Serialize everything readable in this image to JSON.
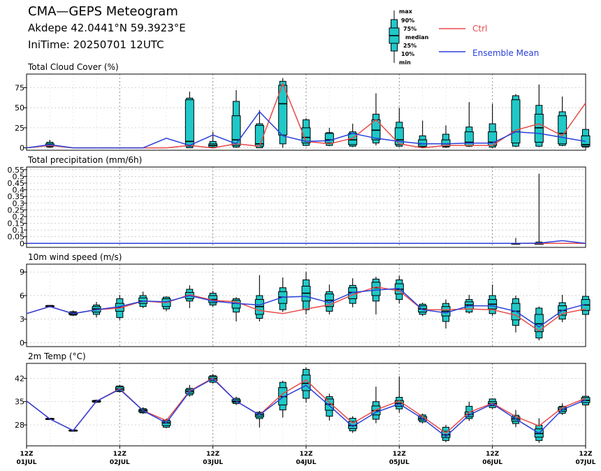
{
  "header": {
    "title": "CMA—GEPS Meteogram",
    "location": "Akdepe 42.0441°N 59.3923°E",
    "init_time": "IniTime: 20250701 12UTC"
  },
  "legend": {
    "box_labels": [
      "max",
      "90%",
      "75%",
      "median",
      "25%",
      "10%",
      "min"
    ],
    "ctrl_label": "Ctrl",
    "mean_label": "Ensemble Mean",
    "ctrl_color": "#e84a4a",
    "mean_color": "#2b3fd8",
    "box_fill": "#20c8c8"
  },
  "x_axis": {
    "ticks": [
      {
        "t": 0,
        "l1": "12Z",
        "l2": "01JUL"
      },
      {
        "t": 24,
        "l1": "12Z",
        "l2": "02JUL"
      },
      {
        "t": 48,
        "l1": "12Z",
        "l2": "03JUL"
      },
      {
        "t": 72,
        "l1": "12Z",
        "l2": "04JUL"
      },
      {
        "t": 96,
        "l1": "12Z",
        "l2": "05JUL"
      },
      {
        "t": 120,
        "l1": "12Z",
        "l2": "06JUL"
      },
      {
        "t": 144,
        "l1": "12Z",
        "l2": "07JUL"
      }
    ]
  },
  "chart_data": [
    {
      "type": "box",
      "title": "Total Cloud Cover (%)",
      "ylim": [
        -3,
        92
      ],
      "yticks": [
        0,
        25,
        50,
        75
      ],
      "x_hours": [
        0,
        6,
        12,
        18,
        24,
        30,
        36,
        42,
        48,
        54,
        60,
        66,
        72,
        78,
        84,
        90,
        96,
        102,
        108,
        114,
        120,
        126,
        132,
        138,
        144
      ],
      "ctrl": [
        0,
        3,
        0,
        0,
        0,
        0,
        0,
        3,
        0,
        5,
        2,
        80,
        8,
        5,
        12,
        35,
        5,
        0,
        3,
        3,
        3,
        22,
        30,
        15,
        56
      ],
      "mean": [
        0,
        4,
        0,
        0,
        0,
        0,
        12,
        3,
        16,
        5,
        45,
        15,
        8,
        9,
        18,
        12,
        8,
        5,
        5,
        6,
        6,
        20,
        18,
        13,
        8
      ],
      "boxes": [
        {
          "t": 6,
          "min": 0,
          "p10": 1,
          "p25": 2,
          "median": 3,
          "p75": 5,
          "p90": 7,
          "max": 10
        },
        {
          "t": 42,
          "min": 0,
          "p10": 0,
          "p25": 2,
          "median": 8,
          "p75": 60,
          "p90": 62,
          "max": 70
        },
        {
          "t": 48,
          "min": 0,
          "p10": 0,
          "p25": 1,
          "median": 3,
          "p75": 5,
          "p90": 8,
          "max": 20
        },
        {
          "t": 54,
          "min": 0,
          "p10": 1,
          "p25": 3,
          "median": 10,
          "p75": 40,
          "p90": 58,
          "max": 72
        },
        {
          "t": 60,
          "min": 0,
          "p10": 0,
          "p25": 2,
          "median": 5,
          "p75": 28,
          "p90": 30,
          "max": 47
        },
        {
          "t": 66,
          "min": 0,
          "p10": 5,
          "p25": 16,
          "median": 55,
          "p75": 78,
          "p90": 83,
          "max": 87
        },
        {
          "t": 72,
          "min": 2,
          "p10": 3,
          "p25": 6,
          "median": 13,
          "p75": 25,
          "p90": 35,
          "max": 37
        },
        {
          "t": 78,
          "min": 2,
          "p10": 3,
          "p25": 6,
          "median": 10,
          "p75": 18,
          "p90": 19,
          "max": 25
        },
        {
          "t": 84,
          "min": 1,
          "p10": 2,
          "p25": 4,
          "median": 10,
          "p75": 18,
          "p90": 20,
          "max": 30
        },
        {
          "t": 90,
          "min": 3,
          "p10": 6,
          "p25": 10,
          "median": 22,
          "p75": 35,
          "p90": 42,
          "max": 68
        },
        {
          "t": 96,
          "min": 1,
          "p10": 2,
          "p25": 4,
          "median": 10,
          "p75": 25,
          "p90": 32,
          "max": 50
        },
        {
          "t": 102,
          "min": 0,
          "p10": 1,
          "p25": 2,
          "median": 5,
          "p75": 10,
          "p90": 15,
          "max": 34
        },
        {
          "t": 108,
          "min": 0,
          "p10": 1,
          "p25": 2,
          "median": 5,
          "p75": 10,
          "p90": 17,
          "max": 28
        },
        {
          "t": 114,
          "min": 1,
          "p10": 2,
          "p25": 3,
          "median": 7,
          "p75": 20,
          "p90": 26,
          "max": 57
        },
        {
          "t": 120,
          "min": 0,
          "p10": 1,
          "p25": 3,
          "median": 7,
          "p75": 20,
          "p90": 30,
          "max": 55
        },
        {
          "t": 126,
          "min": 1,
          "p10": 2,
          "p25": 6,
          "median": 20,
          "p75": 60,
          "p90": 65,
          "max": 67
        },
        {
          "t": 132,
          "min": 1,
          "p10": 2,
          "p25": 7,
          "median": 25,
          "p75": 42,
          "p90": 53,
          "max": 79
        },
        {
          "t": 138,
          "min": 2,
          "p10": 3,
          "p25": 5,
          "median": 18,
          "p75": 40,
          "p90": 45,
          "max": 64
        },
        {
          "t": 144,
          "min": 0,
          "p10": 1,
          "p25": 2,
          "median": 4,
          "p75": 15,
          "p90": 23,
          "max": 24
        }
      ]
    },
    {
      "type": "box",
      "title": "Total precipitation (mm/6h)",
      "ylim": [
        -0.03,
        0.57
      ],
      "yticks": [
        0,
        0.05,
        0.1,
        0.15,
        0.2,
        0.25,
        0.3,
        0.35,
        0.4,
        0.45,
        0.5,
        0.55
      ],
      "x_hours": [
        0,
        6,
        12,
        18,
        24,
        30,
        36,
        42,
        48,
        54,
        60,
        66,
        72,
        78,
        84,
        90,
        96,
        102,
        108,
        114,
        120,
        126,
        132,
        138,
        144
      ],
      "ctrl": [
        0,
        0,
        0,
        0,
        0,
        0,
        0,
        0,
        0,
        0,
        0,
        0,
        0,
        0,
        0,
        0,
        0,
        0,
        0,
        0,
        0,
        0,
        0,
        0,
        0
      ],
      "mean": [
        0,
        0,
        0,
        0,
        0,
        0,
        0,
        0,
        0,
        0,
        0,
        0,
        0,
        0,
        0,
        0,
        0,
        0,
        0,
        0,
        0,
        0,
        0.002,
        0.02,
        0
      ],
      "boxes": [
        {
          "t": 126,
          "min": 0,
          "p10": 0,
          "p25": 0,
          "median": 0,
          "p75": 0,
          "p90": 0,
          "max": 0.04
        },
        {
          "t": 132,
          "min": 0,
          "p10": 0,
          "p25": 0,
          "median": 0,
          "p75": 0,
          "p90": 0.01,
          "max": 0.52
        }
      ]
    },
    {
      "type": "box",
      "title": "10m wind speed (m/s)",
      "ylim": [
        -0.5,
        10
      ],
      "yticks": [
        0,
        3,
        6,
        9
      ],
      "x_hours": [
        0,
        6,
        12,
        18,
        24,
        30,
        36,
        42,
        48,
        54,
        60,
        66,
        72,
        78,
        84,
        90,
        96,
        102,
        108,
        114,
        120,
        126,
        132,
        138,
        144
      ],
      "ctrl": [
        3.7,
        4.6,
        3.7,
        4.2,
        4.4,
        5.3,
        5.1,
        6.1,
        5.4,
        5.2,
        4.1,
        3.7,
        4.3,
        4.8,
        6.1,
        7.1,
        6.6,
        4.2,
        4.2,
        4.3,
        4.2,
        3.5,
        1.5,
        3.7,
        4.3
      ],
      "mean": [
        3.7,
        4.6,
        3.7,
        4.2,
        4.6,
        5.3,
        5.2,
        6.0,
        5.3,
        5.0,
        4.8,
        5.8,
        5.9,
        5.1,
        6.4,
        6.7,
        6.9,
        4.2,
        3.8,
        4.7,
        4.7,
        4.0,
        2.0,
        4.1,
        4.9
      ],
      "boxes": [
        {
          "t": 6,
          "min": 4.5,
          "p10": 4.55,
          "p25": 4.6,
          "median": 4.65,
          "p75": 4.7,
          "p90": 4.75,
          "max": 4.8
        },
        {
          "t": 12,
          "min": 3.4,
          "p10": 3.5,
          "p25": 3.6,
          "median": 3.7,
          "p75": 3.85,
          "p90": 3.95,
          "max": 4.1
        },
        {
          "t": 18,
          "min": 3.2,
          "p10": 3.6,
          "p25": 3.9,
          "median": 4.3,
          "p75": 4.6,
          "p90": 4.8,
          "max": 5.2
        },
        {
          "t": 24,
          "min": 2.9,
          "p10": 3.2,
          "p25": 4.0,
          "median": 4.5,
          "p75": 5.0,
          "p90": 5.6,
          "max": 6.1
        },
        {
          "t": 30,
          "min": 4.4,
          "p10": 4.6,
          "p25": 5.0,
          "median": 5.3,
          "p75": 5.7,
          "p90": 6.0,
          "max": 6.5
        },
        {
          "t": 36,
          "min": 4.0,
          "p10": 4.3,
          "p25": 4.6,
          "median": 5.2,
          "p75": 5.6,
          "p90": 5.8,
          "max": 5.9
        },
        {
          "t": 42,
          "min": 4.4,
          "p10": 5.3,
          "p25": 5.6,
          "median": 6.0,
          "p75": 6.4,
          "p90": 6.8,
          "max": 7.3
        },
        {
          "t": 48,
          "min": 4.6,
          "p10": 4.8,
          "p25": 5.1,
          "median": 5.5,
          "p75": 6.0,
          "p90": 6.3,
          "max": 6.6
        },
        {
          "t": 54,
          "min": 2.7,
          "p10": 3.9,
          "p25": 4.4,
          "median": 5.0,
          "p75": 5.4,
          "p90": 5.6,
          "max": 5.8
        },
        {
          "t": 60,
          "min": 2.7,
          "p10": 3.1,
          "p25": 3.6,
          "median": 4.6,
          "p75": 5.5,
          "p90": 6.0,
          "max": 8.6
        },
        {
          "t": 66,
          "min": 3.9,
          "p10": 4.2,
          "p25": 5.0,
          "median": 5.8,
          "p75": 6.5,
          "p90": 7.0,
          "max": 8.3
        },
        {
          "t": 72,
          "min": 3.6,
          "p10": 4.2,
          "p25": 5.3,
          "median": 6.3,
          "p75": 7.2,
          "p90": 8.0,
          "max": 9.0
        },
        {
          "t": 78,
          "min": 3.6,
          "p10": 4.0,
          "p25": 4.6,
          "median": 5.4,
          "p75": 6.2,
          "p90": 6.5,
          "max": 7.4
        },
        {
          "t": 84,
          "min": 4.5,
          "p10": 5.0,
          "p25": 5.6,
          "median": 6.4,
          "p75": 7.0,
          "p90": 7.3,
          "max": 8.2
        },
        {
          "t": 90,
          "min": 3.6,
          "p10": 5.3,
          "p25": 6.0,
          "median": 7.0,
          "p75": 7.7,
          "p90": 8.1,
          "max": 8.4
        },
        {
          "t": 96,
          "min": 5.0,
          "p10": 5.5,
          "p25": 6.2,
          "median": 6.8,
          "p75": 7.5,
          "p90": 8.0,
          "max": 8.5
        },
        {
          "t": 102,
          "min": 3.4,
          "p10": 3.6,
          "p25": 3.9,
          "median": 4.3,
          "p75": 4.7,
          "p90": 4.9,
          "max": 5.1
        },
        {
          "t": 108,
          "min": 1.8,
          "p10": 2.7,
          "p25": 3.4,
          "median": 4.0,
          "p75": 4.6,
          "p90": 5.0,
          "max": 5.5
        },
        {
          "t": 114,
          "min": 3.7,
          "p10": 3.9,
          "p25": 4.3,
          "median": 4.8,
          "p75": 5.2,
          "p90": 5.5,
          "max": 6.1
        },
        {
          "t": 120,
          "min": 3.4,
          "p10": 3.7,
          "p25": 4.3,
          "median": 4.9,
          "p75": 5.5,
          "p90": 6.0,
          "max": 7.4
        },
        {
          "t": 126,
          "min": 1.3,
          "p10": 2.2,
          "p25": 2.9,
          "median": 4.0,
          "p75": 5.0,
          "p90": 5.6,
          "max": 6.0
        },
        {
          "t": 132,
          "min": 0.3,
          "p10": 0.6,
          "p25": 1.4,
          "median": 2.4,
          "p75": 3.6,
          "p90": 4.4,
          "max": 4.6
        },
        {
          "t": 138,
          "min": 2.6,
          "p10": 3.0,
          "p25": 3.5,
          "median": 4.1,
          "p75": 4.7,
          "p90": 5.1,
          "max": 6.1
        },
        {
          "t": 144,
          "min": 3.2,
          "p10": 3.6,
          "p25": 4.1,
          "median": 4.8,
          "p75": 5.5,
          "p90": 5.9,
          "max": 6.2
        }
      ]
    },
    {
      "type": "box",
      "title": "2m Temp (°C)",
      "ylim": [
        21.7,
        46.5
      ],
      "yticks": [
        28,
        35,
        42
      ],
      "x_hours": [
        0,
        6,
        12,
        18,
        24,
        30,
        36,
        42,
        48,
        54,
        60,
        66,
        72,
        78,
        84,
        90,
        96,
        102,
        108,
        114,
        120,
        126,
        132,
        138,
        144
      ],
      "ctrl": [
        35.2,
        29.8,
        26.3,
        35.1,
        38.9,
        32.3,
        29.3,
        38.2,
        42.1,
        35.1,
        31.0,
        37.4,
        41.5,
        34.8,
        28.5,
        32.5,
        35.2,
        30.5,
        25.5,
        31.8,
        34.5,
        30.5,
        27.7,
        33.2,
        36.0
      ],
      "mean": [
        35.2,
        29.8,
        26.3,
        35.1,
        38.7,
        32.3,
        28.6,
        38.0,
        41.9,
        35.1,
        31.0,
        36.3,
        39.9,
        33.8,
        27.5,
        31.8,
        34.3,
        29.9,
        24.5,
        31.0,
        34.3,
        29.8,
        25.5,
        32.6,
        35.5
      ],
      "boxes": [
        {
          "t": 6,
          "min": 29.5,
          "p10": 29.6,
          "p25": 29.7,
          "median": 29.8,
          "p75": 29.9,
          "p90": 30.0,
          "max": 30.1
        },
        {
          "t": 12,
          "min": 26.0,
          "p10": 26.1,
          "p25": 26.2,
          "median": 26.3,
          "p75": 26.4,
          "p90": 26.5,
          "max": 26.6
        },
        {
          "t": 18,
          "min": 34.6,
          "p10": 34.8,
          "p25": 34.9,
          "median": 35.1,
          "p75": 35.3,
          "p90": 35.4,
          "max": 35.6
        },
        {
          "t": 24,
          "min": 37.8,
          "p10": 38.0,
          "p25": 38.3,
          "median": 38.8,
          "p75": 39.4,
          "p90": 39.7,
          "max": 40.0
        },
        {
          "t": 30,
          "min": 31.3,
          "p10": 31.6,
          "p25": 31.9,
          "median": 32.3,
          "p75": 32.6,
          "p90": 32.9,
          "max": 33.3
        },
        {
          "t": 36,
          "min": 27.0,
          "p10": 27.3,
          "p25": 27.8,
          "median": 28.6,
          "p75": 29.2,
          "p90": 29.5,
          "max": 29.9
        },
        {
          "t": 42,
          "min": 36.5,
          "p10": 37.0,
          "p25": 37.5,
          "median": 38.1,
          "p75": 38.6,
          "p90": 39.0,
          "max": 40.0
        },
        {
          "t": 48,
          "min": 40.4,
          "p10": 40.8,
          "p25": 41.3,
          "median": 41.9,
          "p75": 42.5,
          "p90": 42.8,
          "max": 43.3
        },
        {
          "t": 54,
          "min": 34.0,
          "p10": 34.4,
          "p25": 34.8,
          "median": 35.1,
          "p75": 35.6,
          "p90": 36.0,
          "max": 36.5
        },
        {
          "t": 60,
          "min": 27.2,
          "p10": 29.9,
          "p25": 30.4,
          "median": 31.0,
          "p75": 31.5,
          "p90": 31.8,
          "max": 32.2
        },
        {
          "t": 66,
          "min": 30.2,
          "p10": 32.5,
          "p25": 34.0,
          "median": 36.5,
          "p75": 39.2,
          "p90": 40.8,
          "max": 41.3
        },
        {
          "t": 72,
          "min": 34.7,
          "p10": 36.0,
          "p25": 38.3,
          "median": 40.5,
          "p75": 43.0,
          "p90": 44.7,
          "max": 45.3
        },
        {
          "t": 78,
          "min": 29.3,
          "p10": 30.6,
          "p25": 32.4,
          "median": 34.2,
          "p75": 35.8,
          "p90": 36.5,
          "max": 37.4
        },
        {
          "t": 84,
          "min": 25.6,
          "p10": 26.2,
          "p25": 26.9,
          "median": 27.8,
          "p75": 29.0,
          "p90": 30.0,
          "max": 30.6
        },
        {
          "t": 90,
          "min": 28.5,
          "p10": 29.7,
          "p25": 31.0,
          "median": 32.3,
          "p75": 33.7,
          "p90": 35.0,
          "max": 39.5
        },
        {
          "t": 96,
          "min": 31.7,
          "p10": 32.8,
          "p25": 33.6,
          "median": 34.5,
          "p75": 35.3,
          "p90": 36.3,
          "max": 42.6
        },
        {
          "t": 102,
          "min": 28.4,
          "p10": 28.9,
          "p25": 29.4,
          "median": 29.9,
          "p75": 30.5,
          "p90": 31.0,
          "max": 31.4
        },
        {
          "t": 108,
          "min": 22.8,
          "p10": 23.3,
          "p25": 24.2,
          "median": 25.0,
          "p75": 26.1,
          "p90": 27.3,
          "max": 28.0
        },
        {
          "t": 114,
          "min": 29.2,
          "p10": 29.9,
          "p25": 30.5,
          "median": 31.2,
          "p75": 31.9,
          "p90": 33.6,
          "max": 35.0
        },
        {
          "t": 120,
          "min": 32.8,
          "p10": 33.2,
          "p25": 33.8,
          "median": 34.4,
          "p75": 35.0,
          "p90": 35.8,
          "max": 36.0
        },
        {
          "t": 126,
          "min": 27.3,
          "p10": 28.4,
          "p25": 29.1,
          "median": 29.8,
          "p75": 30.4,
          "p90": 30.9,
          "max": 32.5
        },
        {
          "t": 132,
          "min": 22.6,
          "p10": 23.3,
          "p25": 24.3,
          "median": 25.4,
          "p75": 26.8,
          "p90": 27.9,
          "max": 30.0
        },
        {
          "t": 138,
          "min": 31.0,
          "p10": 31.5,
          "p25": 32.1,
          "median": 32.7,
          "p75": 33.3,
          "p90": 33.6,
          "max": 34.5
        },
        {
          "t": 144,
          "min": 33.5,
          "p10": 34.0,
          "p25": 34.7,
          "median": 35.4,
          "p75": 36.2,
          "p90": 36.6,
          "max": 36.8
        }
      ]
    }
  ]
}
